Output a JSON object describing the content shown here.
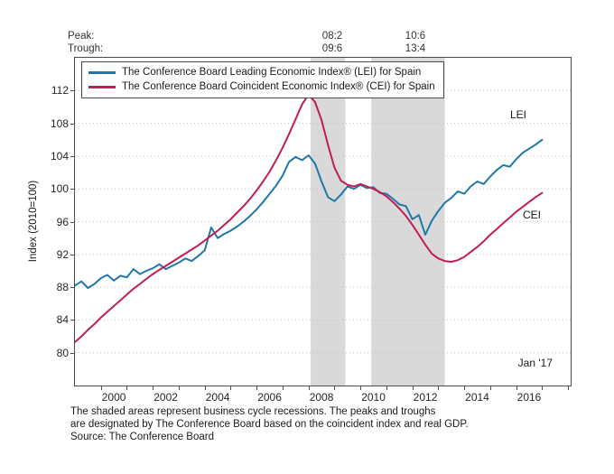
{
  "annotations": {
    "peak_label": "Peak:",
    "trough_label": "Trough:",
    "peak_values": [
      "08:2",
      "10:6"
    ],
    "trough_values": [
      "09:6",
      "13:4"
    ],
    "lei_label": "LEI",
    "cei_label": "CEI",
    "last_point_label": "Jan '17"
  },
  "legend": {
    "items": [
      {
        "label": "The Conference Board Leading Economic Index® (LEI) for Spain",
        "color": "#1f78a8"
      },
      {
        "label": "The Conference Board Coincident Economic Index® (CEI) for Spain",
        "color": "#c01e52"
      }
    ]
  },
  "footnotes": [
    "The shaded areas represent business cycle recessions. The peaks and troughs",
    "are designated by The Conference Board based on the coincident index and real GDP.",
    "Source: The Conference Board"
  ],
  "colors": {
    "lei_line": "#1f78a8",
    "cei_line": "#c01e52",
    "recession_shading": "#d9d9d9",
    "gridline": "#c4c4c4",
    "axis_frame": "#4a4a4a",
    "text": "#262626"
  },
  "chart_data": {
    "type": "line",
    "title": "",
    "xlabel": "",
    "ylabel": "Index (2010=100)",
    "xlim": [
      1999.0,
      2018.1
    ],
    "ylim": [
      76,
      116
    ],
    "yticks": [
      80,
      84,
      88,
      92,
      96,
      100,
      104,
      108,
      112
    ],
    "xtick_label_years": [
      2000,
      2002,
      2004,
      2006,
      2008,
      2010,
      2012,
      2014,
      2016
    ],
    "grid": "dotted horizontal",
    "legend_position": "top-left inside plot",
    "recessions": [
      {
        "peak": "2008 Feb (08:2)",
        "trough": "2009 Jun (09:6)",
        "start": 2008.083,
        "end": 2009.417
      },
      {
        "peak": "2010 Jun (10:6)",
        "trough": "2013 Apr (13:4)",
        "start": 2010.417,
        "end": 2013.25
      }
    ],
    "x": [
      1999.0,
      1999.25,
      1999.5,
      1999.75,
      2000.0,
      2000.25,
      2000.5,
      2000.75,
      2001.0,
      2001.25,
      2001.5,
      2001.75,
      2002.0,
      2002.25,
      2002.5,
      2002.75,
      2003.0,
      2003.25,
      2003.5,
      2003.75,
      2004.0,
      2004.25,
      2004.5,
      2004.75,
      2005.0,
      2005.25,
      2005.5,
      2005.75,
      2006.0,
      2006.25,
      2006.5,
      2006.75,
      2007.0,
      2007.25,
      2007.5,
      2007.75,
      2008.0,
      2008.25,
      2008.5,
      2008.75,
      2009.0,
      2009.25,
      2009.5,
      2009.75,
      2010.0,
      2010.25,
      2010.5,
      2010.75,
      2011.0,
      2011.25,
      2011.5,
      2011.75,
      2012.0,
      2012.25,
      2012.5,
      2012.75,
      2013.0,
      2013.25,
      2013.5,
      2013.75,
      2014.0,
      2014.25,
      2014.5,
      2014.75,
      2015.0,
      2015.25,
      2015.5,
      2015.75,
      2016.0,
      2016.25,
      2016.5,
      2016.75,
      2017.0
    ],
    "series": [
      {
        "name": "LEI",
        "color": "#1f78a8",
        "values": [
          88.2,
          88.7,
          87.9,
          88.4,
          89.1,
          89.5,
          88.8,
          89.4,
          89.2,
          90.2,
          89.6,
          90.0,
          90.3,
          90.8,
          90.2,
          90.6,
          91.0,
          91.5,
          91.2,
          91.8,
          92.5,
          95.3,
          94.0,
          94.5,
          94.9,
          95.4,
          96.0,
          96.7,
          97.5,
          98.4,
          99.4,
          100.4,
          101.6,
          103.3,
          103.9,
          103.5,
          104.1,
          103.1,
          100.9,
          99.0,
          98.5,
          99.3,
          100.3,
          100.0,
          100.5,
          100.1,
          100.2,
          99.5,
          99.4,
          98.8,
          98.1,
          97.9,
          96.3,
          96.8,
          94.4,
          96.1,
          97.3,
          98.3,
          98.9,
          99.7,
          99.4,
          100.3,
          100.9,
          100.6,
          101.5,
          102.3,
          102.9,
          102.7,
          103.6,
          104.4,
          104.9,
          105.4,
          106.0
        ]
      },
      {
        "name": "CEI",
        "color": "#c01e52",
        "values": [
          81.3,
          82.0,
          82.8,
          83.5,
          84.3,
          85.0,
          85.7,
          86.4,
          87.1,
          87.8,
          88.4,
          89.0,
          89.6,
          90.1,
          90.6,
          91.1,
          91.6,
          92.1,
          92.6,
          93.1,
          93.7,
          94.3,
          94.9,
          95.6,
          96.3,
          97.1,
          97.9,
          98.8,
          99.8,
          100.9,
          102.1,
          103.5,
          105.0,
          106.7,
          108.5,
          110.3,
          111.5,
          110.6,
          108.4,
          105.4,
          102.6,
          101.0,
          100.5,
          100.3,
          100.6,
          100.3,
          100.0,
          99.6,
          99.1,
          98.4,
          97.6,
          96.7,
          95.6,
          94.4,
          93.2,
          92.1,
          91.5,
          91.2,
          91.1,
          91.3,
          91.7,
          92.3,
          92.9,
          93.6,
          94.4,
          95.1,
          95.8,
          96.5,
          97.2,
          97.8,
          98.4,
          99.0,
          99.5
        ]
      }
    ]
  }
}
